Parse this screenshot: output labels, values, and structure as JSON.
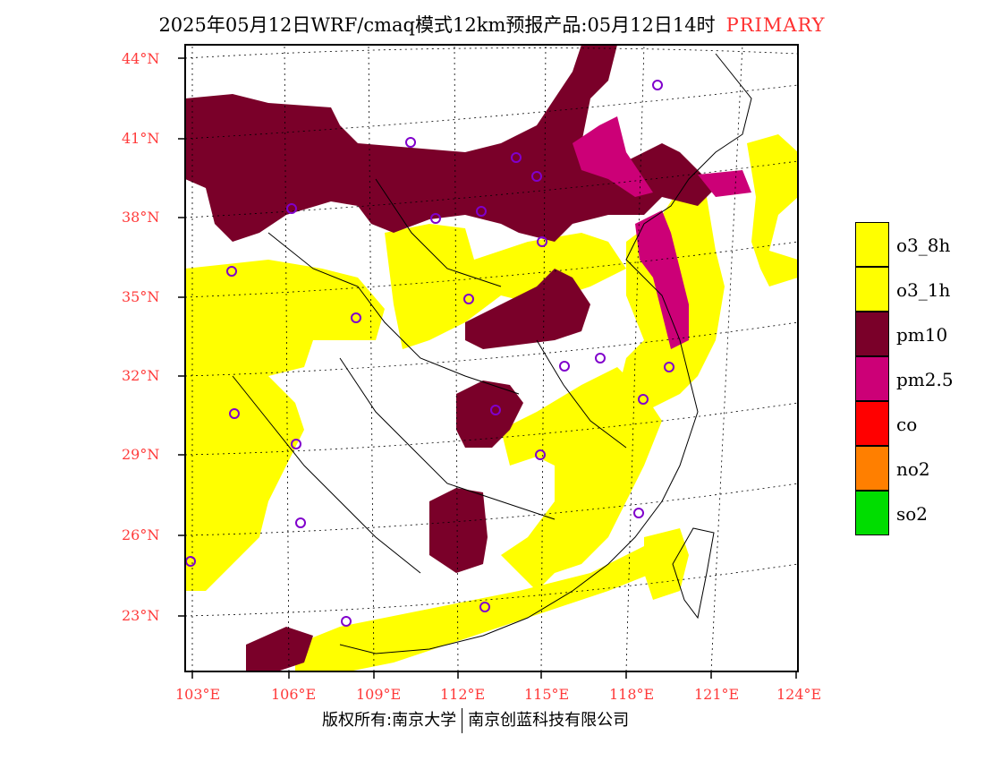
{
  "title": {
    "main": "2025年05月12日WRF/cmaq模式12km预报产品:05月12日14时",
    "tag": "PRIMARY"
  },
  "axes": {
    "lat_labels": [
      "44°N",
      "41°N",
      "38°N",
      "35°N",
      "32°N",
      "29°N",
      "26°N",
      "23°N"
    ],
    "lon_labels": [
      "103°E",
      "106°E",
      "109°E",
      "112°E",
      "115°E",
      "118°E",
      "121°E",
      "124°E"
    ]
  },
  "legend": [
    {
      "label": "o3_8h",
      "color": "#ffff00"
    },
    {
      "label": "o3_1h",
      "color": "#ffff00"
    },
    {
      "label": "pm10",
      "color": "#7a0029"
    },
    {
      "label": "pm2.5",
      "color": "#cc0077"
    },
    {
      "label": "co",
      "color": "#ff0000"
    },
    {
      "label": "no2",
      "color": "#ff7f00"
    },
    {
      "label": "so2",
      "color": "#00dd00"
    }
  ],
  "footer": {
    "left": "版权所有:南京大学",
    "right": "南京创蓝科技有限公司"
  },
  "colors": {
    "axis_label": "#ff3a3a",
    "tag": "#ff3030",
    "station_marker": "#8000cc"
  }
}
